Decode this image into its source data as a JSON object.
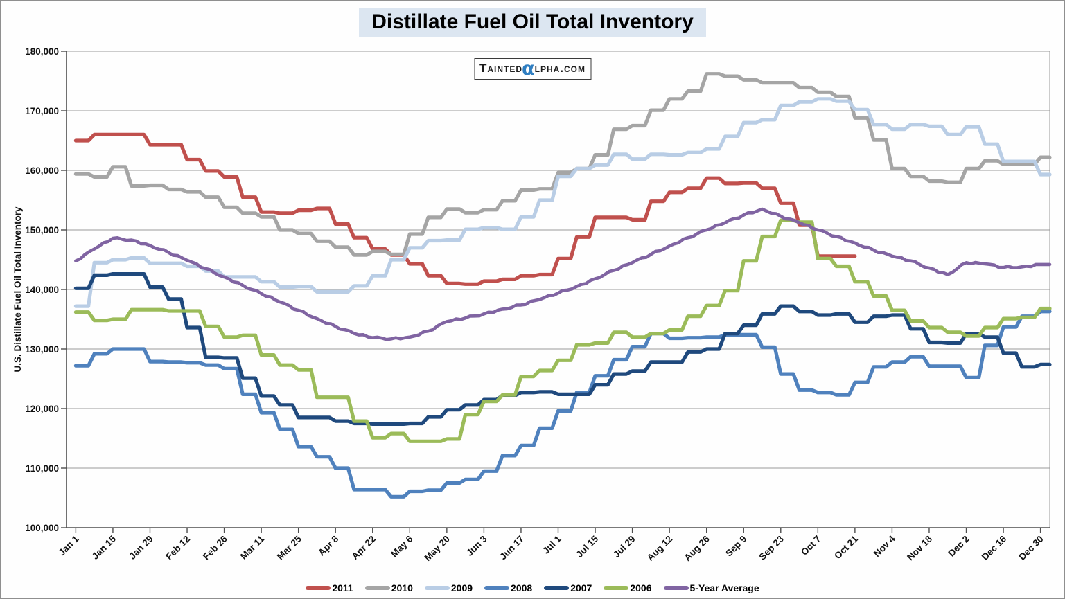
{
  "title": "Distillate Fuel Oil Total Inventory",
  "watermark": {
    "prefix": "Tainted",
    "alpha": "α",
    "suffix": "lpha.com"
  },
  "chart_data": {
    "type": "line",
    "line_style": "step-weekly",
    "title": "Distillate Fuel Oil Total Inventory",
    "xlabel": "",
    "ylabel": "U.S. Distillate Fuel Oil Total Inventory",
    "ylim": [
      100000,
      180000
    ],
    "ytick_step": 10000,
    "ytick_labels": [
      "100,000",
      "110,000",
      "120,000",
      "130,000",
      "140,000",
      "150,000",
      "160,000",
      "170,000",
      "180,000"
    ],
    "x_tick_labels": [
      "Jan 1",
      "Jan 15",
      "Jan 29",
      "Feb 12",
      "Feb 26",
      "Mar 11",
      "Mar 25",
      "Apr 8",
      "Apr 22",
      "May 6",
      "May 20",
      "Jun 3",
      "Jun 17",
      "Jul 1",
      "Jul 15",
      "Jul 29",
      "Aug 12",
      "Aug 26",
      "Sep 9",
      "Sep 23",
      "Oct 7",
      "Oct 21",
      "Nov 4",
      "Nov 18",
      "Dec 2",
      "Dec 16",
      "Dec 30"
    ],
    "weeks_per_year": 53,
    "grid": true,
    "legend_position": "bottom",
    "colors": {
      "grid": "#999999",
      "axis": "#4d4d4d",
      "title_bg": "#dce6f1",
      "alpha_blue": "#2f7ec1"
    },
    "series": [
      {
        "name": "2011",
        "color": "#C0504D",
        "smooth": false,
        "values": [
          165000,
          166000,
          166000,
          166000,
          164300,
          164300,
          161800,
          159900,
          158900,
          155500,
          153000,
          152800,
          153300,
          153600,
          151000,
          148700,
          146800,
          145800,
          144300,
          142300,
          141000,
          140900,
          141400,
          141700,
          142300,
          142500,
          145200,
          148800,
          152100,
          152100,
          151700,
          154800,
          156300,
          157000,
          158700,
          157800,
          157900,
          157000,
          154500,
          150800,
          145600,
          145600,
          145600
        ]
      },
      {
        "name": "2010",
        "color": "#A5A5A5",
        "smooth": false,
        "values": [
          159400,
          158900,
          160600,
          157400,
          157500,
          156800,
          156400,
          155500,
          153800,
          152800,
          152200,
          150000,
          149400,
          148100,
          147100,
          145800,
          146400,
          145900,
          149300,
          152100,
          153500,
          152900,
          153400,
          154900,
          156700,
          156900,
          159600,
          160300,
          162600,
          166900,
          167500,
          170100,
          172000,
          173300,
          176200,
          175800,
          175200,
          174700,
          174700,
          173900,
          173100,
          172400,
          168800,
          165100,
          160300,
          159000,
          158200,
          158000,
          160300,
          161600,
          161000,
          161000,
          162200
        ]
      },
      {
        "name": "2009",
        "color": "#B9CDE5",
        "smooth": false,
        "values": [
          137200,
          144500,
          145000,
          145300,
          144400,
          144400,
          143900,
          143100,
          142100,
          142100,
          141300,
          140400,
          140500,
          139600,
          139600,
          140600,
          142300,
          145000,
          147000,
          148200,
          148300,
          150100,
          150400,
          150100,
          152200,
          155000,
          159000,
          160300,
          160900,
          162700,
          161900,
          162700,
          162600,
          163000,
          163600,
          165700,
          168000,
          168500,
          170900,
          171500,
          172000,
          171600,
          170200,
          167700,
          166900,
          167700,
          167400,
          166000,
          167300,
          164400,
          161500,
          161500,
          159300
        ]
      },
      {
        "name": "2008",
        "color": "#4F81BD",
        "smooth": false,
        "values": [
          127200,
          129200,
          130000,
          130000,
          127900,
          127800,
          127700,
          127300,
          126700,
          122400,
          119300,
          116500,
          113600,
          111900,
          110000,
          106400,
          106400,
          105200,
          106100,
          106300,
          107500,
          108100,
          109500,
          112100,
          113800,
          116700,
          119600,
          122700,
          125500,
          128200,
          130400,
          132600,
          131800,
          131900,
          132000,
          132400,
          132400,
          130300,
          125800,
          123100,
          122700,
          122300,
          124400,
          127000,
          127800,
          128700,
          127100,
          127100,
          125200,
          130600,
          133700,
          135500,
          136300
        ]
      },
      {
        "name": "2007",
        "color": "#1F497D",
        "smooth": false,
        "values": [
          140200,
          142400,
          142600,
          142600,
          140400,
          138400,
          133600,
          128600,
          128500,
          125100,
          122100,
          120600,
          118500,
          118500,
          117900,
          117500,
          117400,
          117400,
          117500,
          118600,
          119800,
          120600,
          121500,
          122200,
          122700,
          122800,
          122400,
          122400,
          124000,
          125800,
          126300,
          127800,
          127800,
          129500,
          130000,
          132600,
          134000,
          135900,
          137200,
          136300,
          135700,
          135900,
          134500,
          135500,
          135700,
          133400,
          131100,
          131000,
          132600,
          132000,
          129300,
          127000,
          127400
        ]
      },
      {
        "name": "2006",
        "color": "#9BBB59",
        "smooth": false,
        "values": [
          136200,
          134800,
          135000,
          136600,
          136600,
          136400,
          136400,
          133800,
          132000,
          132300,
          129000,
          127300,
          126500,
          121900,
          121900,
          117900,
          115100,
          115800,
          114500,
          114500,
          114900,
          119000,
          121200,
          122300,
          125400,
          126400,
          128100,
          130700,
          131000,
          132800,
          132000,
          132600,
          133200,
          135500,
          137300,
          139800,
          144800,
          148900,
          151600,
          151300,
          145200,
          143900,
          141300,
          138900,
          136500,
          134700,
          133600,
          132800,
          132200,
          133600,
          135100,
          135300,
          136800
        ]
      },
      {
        "name": "5-Year Average",
        "color": "#8064A2",
        "smooth": true,
        "values": [
          144800,
          146800,
          148600,
          148300,
          147400,
          146200,
          144900,
          143500,
          142100,
          140700,
          139300,
          137900,
          136500,
          135100,
          133800,
          132600,
          131900,
          131700,
          132000,
          133000,
          134600,
          135200,
          135900,
          136700,
          137400,
          138300,
          139400,
          140500,
          141800,
          143200,
          144500,
          145900,
          147300,
          148700,
          150000,
          151200,
          152500,
          153500,
          152300,
          151200,
          150000,
          148900,
          147800,
          146600,
          145600,
          144800,
          143600,
          142500,
          144500,
          144300,
          143700,
          143800,
          144200
        ]
      }
    ]
  }
}
